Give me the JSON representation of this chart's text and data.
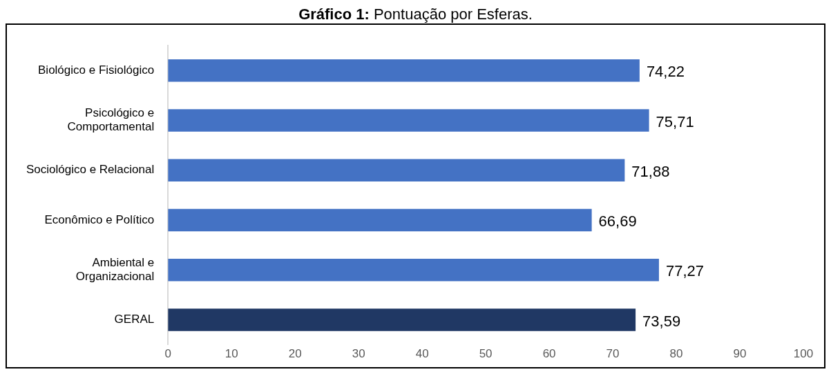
{
  "chart_data": {
    "type": "bar",
    "orientation": "horizontal",
    "title": "Gráfico 1: Pontuação por Esferas.",
    "categories": [
      "Biológico e Fisiológico",
      "Psicológico e Comportamental",
      "Sociológico e Relacional",
      "Econômico e Político",
      "Ambiental e Organizacional",
      "GERAL"
    ],
    "values": [
      74.22,
      75.71,
      71.88,
      66.69,
      77.27,
      73.59
    ],
    "colors": [
      "#4472c4",
      "#4472c4",
      "#4472c4",
      "#4472c4",
      "#4472c4",
      "#203864"
    ],
    "value_labels": [
      "74,22",
      "75,71",
      "71,88",
      "66,69",
      "77,27",
      "73,59"
    ],
    "xlim": [
      0,
      100
    ],
    "xticks": [
      0,
      10,
      20,
      30,
      40,
      50,
      60,
      70,
      80,
      90,
      100
    ],
    "grid": false,
    "legend": false
  }
}
